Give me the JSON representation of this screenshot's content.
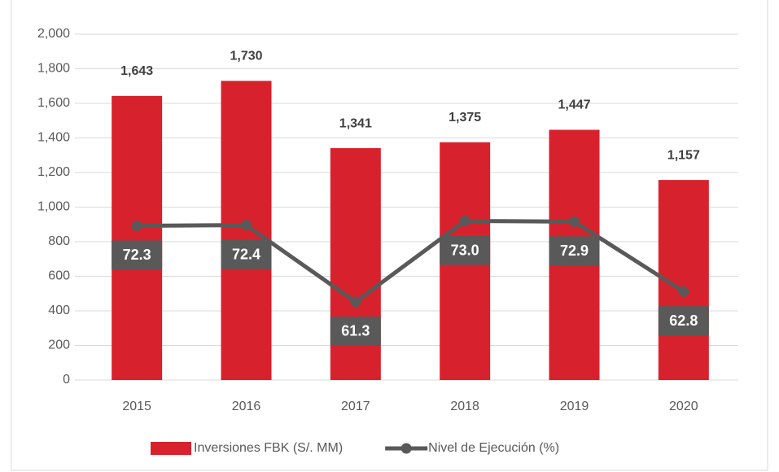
{
  "chart_data": {
    "type": "bar_line",
    "categories": [
      "2015",
      "2016",
      "2017",
      "2018",
      "2019",
      "2020"
    ],
    "series": [
      {
        "name": "Inversiones FBK (S/. MM)",
        "type": "bar",
        "color": "#d7222e",
        "values": [
          1643,
          1730,
          1341,
          1375,
          1447,
          1157
        ],
        "value_labels": [
          "1,643",
          "1,730",
          "1,341",
          "1,375",
          "1,447",
          "1,157"
        ]
      },
      {
        "name": "Nivel de Ejecución (%)",
        "type": "line",
        "axis": "y2",
        "color": "#595959",
        "values": [
          72.3,
          72.4,
          61.3,
          73.0,
          72.9,
          62.8
        ],
        "value_labels": [
          "72.3",
          "72.4",
          "61.3",
          "73.0",
          "72.9",
          "62.8"
        ]
      }
    ],
    "ylim": [
      0,
      2000
    ],
    "yticks": [
      0,
      200,
      400,
      600,
      800,
      {
        "value": 1000,
        "label": "1,000"
      },
      {
        "value": 1200,
        "label": "1,200"
      },
      {
        "value": 1400,
        "label": "1,400"
      },
      {
        "value": 1600,
        "label": "1,600"
      },
      {
        "value": 1800,
        "label": "1,800"
      },
      {
        "value": 2000,
        "label": "2,000"
      }
    ],
    "y2lim": [
      50,
      100
    ],
    "grid": true,
    "legend": "bottom"
  }
}
